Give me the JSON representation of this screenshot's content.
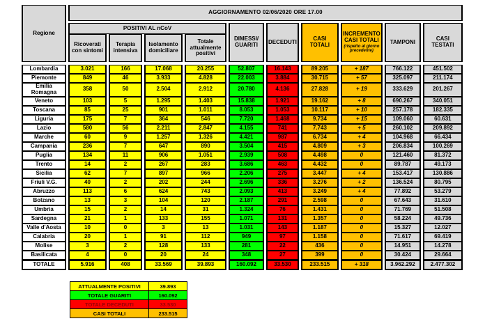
{
  "chart_data": {
    "type": "table",
    "title": "AGGIORNAMENTO 02/06/2020 ORE 17.00",
    "positivi_group_label": "POSITIVI AL nCoV",
    "columns": [
      "Regione",
      "Ricoverati con sintomi",
      "Terapia intensiva",
      "Isolamento domiciliare",
      "Totale attualmente positivi",
      "DIMESSI/ GUARITI",
      "DECEDUTI",
      "CASI TOTALI",
      "INCREMENTO CASI TOTALI",
      "TAMPONI",
      "CASI TESTATI"
    ],
    "incremento_note": "(rispetto al giorno precedente)",
    "rows": [
      [
        "Lombardia",
        "3.021",
        "166",
        "17.068",
        "20.255",
        "52.807",
        "16.143",
        "89.205",
        "+ 187",
        "766.122",
        "451.502"
      ],
      [
        "Piemonte",
        "849",
        "46",
        "3.933",
        "4.828",
        "22.003",
        "3.884",
        "30.715",
        "+ 57",
        "325.097",
        "211.174"
      ],
      [
        "Emilia Romagna",
        "358",
        "50",
        "2.504",
        "2.912",
        "20.780",
        "4.136",
        "27.828",
        "+ 19",
        "333.629",
        "201.267"
      ],
      [
        "Veneto",
        "103",
        "5",
        "1.295",
        "1.403",
        "15.838",
        "1.921",
        "19.162",
        "+ 8",
        "690.267",
        "340.051"
      ],
      [
        "Toscana",
        "85",
        "25",
        "901",
        "1.011",
        "8.053",
        "1.053",
        "10.117",
        "+ 10",
        "257.178",
        "182.335"
      ],
      [
        "Liguria",
        "175",
        "7",
        "364",
        "546",
        "7.720",
        "1.468",
        "9.734",
        "+ 15",
        "109.060",
        "60.631"
      ],
      [
        "Lazio",
        "580",
        "56",
        "2.211",
        "2.847",
        "4.155",
        "741",
        "7.743",
        "+ 5",
        "260.102",
        "209.892"
      ],
      [
        "Marche",
        "60",
        "9",
        "1.257",
        "1.326",
        "4.421",
        "987",
        "6.734",
        "+ 4",
        "104.968",
        "66.434"
      ],
      [
        "Campania",
        "236",
        "7",
        "647",
        "890",
        "3.504",
        "415",
        "4.809",
        "+ 3",
        "206.834",
        "100.269"
      ],
      [
        "Puglia",
        "134",
        "11",
        "906",
        "1.051",
        "2.939",
        "508",
        "4.498",
        "0",
        "121.460",
        "81.372"
      ],
      [
        "Trento",
        "14",
        "2",
        "267",
        "283",
        "3.686",
        "463",
        "4.432",
        "0",
        "89.787",
        "49.173"
      ],
      [
        "Sicilia",
        "62",
        "7",
        "897",
        "966",
        "2.206",
        "275",
        "3.447",
        "+ 4",
        "153.417",
        "130.886"
      ],
      [
        "Friuli V.G.",
        "40",
        "2",
        "202",
        "244",
        "2.696",
        "336",
        "3.276",
        "+ 2",
        "136.524",
        "80.795"
      ],
      [
        "Abruzzo",
        "113",
        "6",
        "624",
        "743",
        "2.093",
        "413",
        "3.249",
        "+ 4",
        "77.892",
        "53.279"
      ],
      [
        "Bolzano",
        "13",
        "3",
        "104",
        "120",
        "2.187",
        "291",
        "2.598",
        "0",
        "67.643",
        "31.610"
      ],
      [
        "Umbria",
        "15",
        "2",
        "14",
        "31",
        "1.324",
        "76",
        "1.431",
        "0",
        "71.769",
        "51.508"
      ],
      [
        "Sardegna",
        "21",
        "1",
        "133",
        "155",
        "1.071",
        "131",
        "1.357",
        "0",
        "58.224",
        "49.736"
      ],
      [
        "Valle d'Aosta",
        "10",
        "0",
        "3",
        "13",
        "1.031",
        "143",
        "1.187",
        "0",
        "15.327",
        "12.027"
      ],
      [
        "Calabria",
        "20",
        "1",
        "91",
        "112",
        "949",
        "97",
        "1.158",
        "0",
        "71.617",
        "69.419"
      ],
      [
        "Molise",
        "3",
        "2",
        "128",
        "133",
        "281",
        "22",
        "436",
        "0",
        "14.951",
        "14.278"
      ],
      [
        "Basilicata",
        "4",
        "0",
        "20",
        "24",
        "348",
        "27",
        "399",
        "0",
        "30.424",
        "29.664"
      ]
    ],
    "totale_row": [
      "TOTALE",
      "5.916",
      "408",
      "33.569",
      "39.893",
      "160.092",
      "33.530",
      "233.515",
      "+ 318",
      "3.962.292",
      "2.477.302"
    ],
    "summary": [
      {
        "label": "ATTUALMENTE POSITIVI",
        "value": "39.893",
        "bg": "#FFFF00",
        "fg": "#000000"
      },
      {
        "label": "TOTALE GUARITI",
        "value": "160.092",
        "bg": "#00FF00",
        "fg": "#000000"
      },
      {
        "label": "TOTALE DECEDUTI",
        "value": "33.530",
        "bg": "#FF0000",
        "fg": "#9C0006"
      },
      {
        "label": "CASI TOTALI",
        "value": "233.515",
        "bg": "#FFC000",
        "fg": "#000000"
      }
    ],
    "colors": {
      "yellow": "#FFFF00",
      "green": "#00FF00",
      "red": "#FF0000",
      "orange": "#FFC000",
      "gray": "#D9D9D9",
      "deceduti_text": "#9C0006"
    }
  }
}
